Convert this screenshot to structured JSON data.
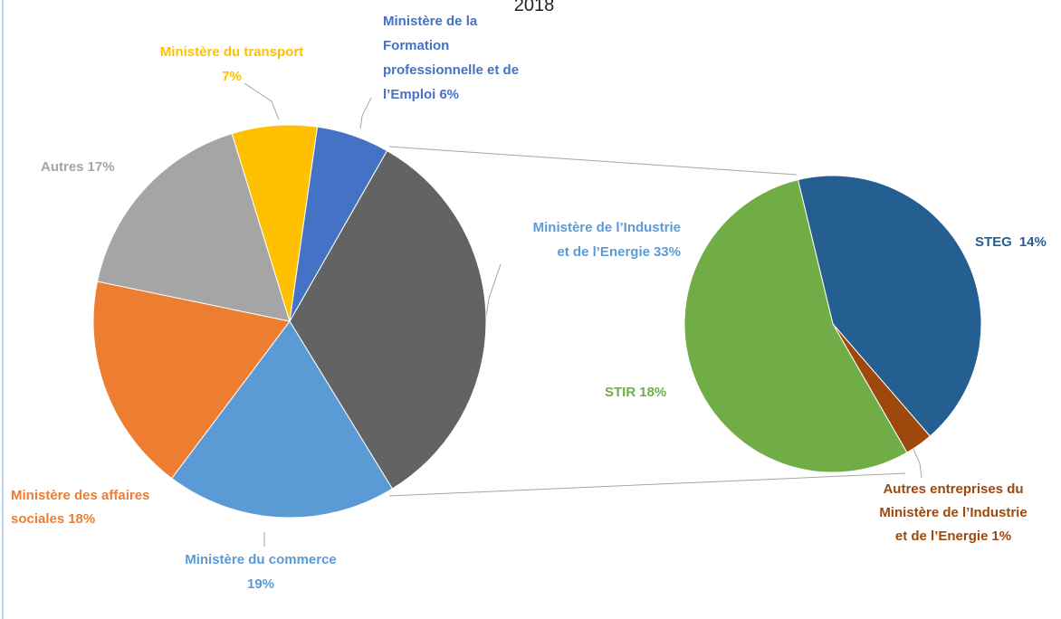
{
  "chart_data": {
    "type": "pie",
    "title": "2018",
    "categories": [
      [
        "Ministère de l’Industrie",
        "et de l’Energie"
      ],
      [
        "Ministère du commerce"
      ],
      [
        "Ministère des affaires",
        "sociales"
      ],
      [
        "Autres"
      ],
      [
        "Ministère du transport"
      ],
      [
        "Ministère de la",
        "Formation",
        "professionnelle et de",
        "l’Emploi"
      ]
    ],
    "values": [
      33,
      19,
      18,
      17,
      7,
      6
    ],
    "value_labels": [
      "33%",
      "19%",
      "18%",
      "17%",
      "7%",
      "6%"
    ],
    "colors": [
      "#636363",
      "#5b9bd5",
      "#ed7d31",
      "#a5a5a5",
      "#ffc000",
      "#4472c4"
    ],
    "sub": {
      "categories": [
        [
          "STEG"
        ],
        [
          "Autres entreprises du",
          "Ministère de l’Industrie",
          "et de l’Energie"
        ],
        [
          "STIR"
        ]
      ],
      "values": [
        14,
        1,
        18
      ],
      "value_labels": [
        "14%",
        "1%",
        "18%"
      ],
      "colors": [
        "#255e91",
        "#9e480e",
        "#70ad47"
      ]
    }
  }
}
